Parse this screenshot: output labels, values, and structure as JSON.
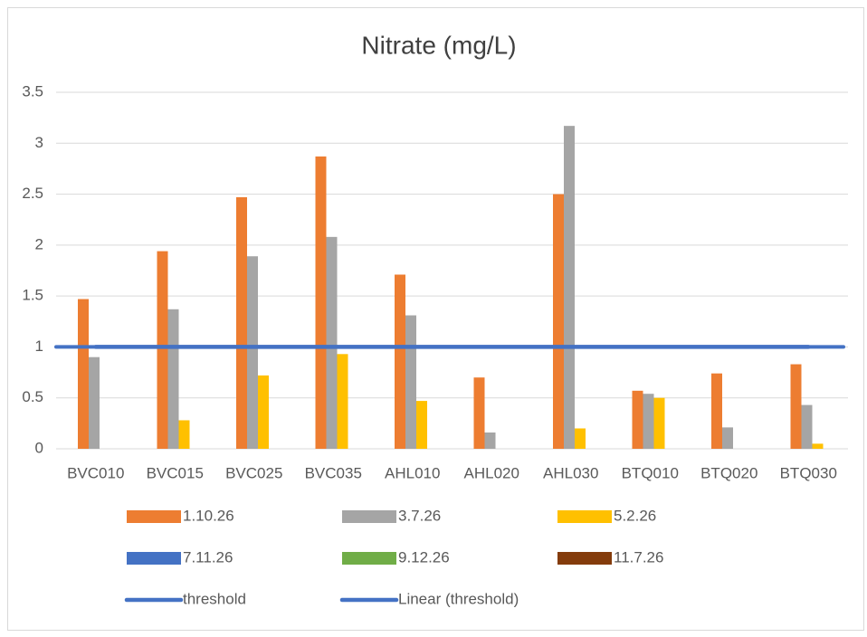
{
  "chart_data": {
    "type": "bar",
    "title": "Nitrate (mg/L)",
    "categories": [
      "BVC010",
      "BVC015",
      "BVC025",
      "BVC035",
      "AHL010",
      "AHL020",
      "AHL030",
      "BTQ010",
      "BTQ020",
      "BTQ030"
    ],
    "series": [
      {
        "name": "1.10.26",
        "color": "#ED7D31",
        "values": [
          1.47,
          1.94,
          2.47,
          2.87,
          1.71,
          0.7,
          2.5,
          0.57,
          0.74,
          0.83
        ]
      },
      {
        "name": "3.7.26",
        "color": "#A5A5A5",
        "values": [
          0.9,
          1.37,
          1.89,
          2.08,
          1.31,
          0.16,
          3.17,
          0.54,
          0.21,
          0.43
        ]
      },
      {
        "name": "5.2.26",
        "color": "#FFC000",
        "values": [
          null,
          0.28,
          0.72,
          0.93,
          0.47,
          null,
          0.2,
          0.5,
          null,
          0.05
        ]
      },
      {
        "name": "7.11.26",
        "color": "#4472C4",
        "values": [
          null,
          null,
          null,
          null,
          null,
          null,
          null,
          null,
          null,
          null
        ]
      },
      {
        "name": "9.12.26",
        "color": "#70AD47",
        "values": [
          null,
          null,
          null,
          null,
          null,
          null,
          null,
          null,
          null,
          null
        ]
      },
      {
        "name": "11.7.26",
        "color": "#843C0C",
        "values": [
          null,
          null,
          null,
          null,
          null,
          null,
          null,
          null,
          null,
          null
        ]
      },
      {
        "name": "threshold",
        "type": "line",
        "color": "#4472C4",
        "values": [
          1,
          1,
          1,
          1,
          1,
          1,
          1,
          1,
          1,
          1
        ]
      },
      {
        "name": "Linear (threshold)",
        "type": "trendline",
        "color": "#4472C4",
        "values": [
          1,
          1,
          1,
          1,
          1,
          1,
          1,
          1,
          1,
          1
        ]
      }
    ],
    "ylim": [
      0,
      3.5
    ],
    "yticks": [
      0,
      0.5,
      1,
      1.5,
      2,
      2.5,
      3,
      3.5
    ],
    "grid": true,
    "legend": "bottom"
  }
}
